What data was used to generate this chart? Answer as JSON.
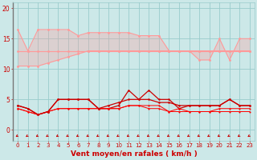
{
  "x": [
    0,
    1,
    2,
    3,
    4,
    5,
    6,
    7,
    8,
    9,
    10,
    11,
    12,
    13,
    14,
    15,
    16,
    17,
    18,
    19,
    20,
    21,
    22,
    23
  ],
  "series_upper": [
    16.5,
    13,
    16.5,
    16.5,
    16.5,
    16.5,
    15.5,
    16,
    16,
    16,
    16,
    16,
    15.5,
    15.5,
    15.5,
    13,
    13,
    13,
    11.5,
    11.5,
    15,
    11.5,
    15,
    15
  ],
  "series_mid1": [
    13,
    13,
    13,
    13,
    13,
    13,
    13,
    13,
    13,
    13,
    13,
    13,
    13,
    13,
    13,
    13,
    13,
    13,
    13,
    13,
    13,
    13,
    13,
    13
  ],
  "series_mid2": [
    10.5,
    10.5,
    10.5,
    11,
    11.5,
    12,
    12.5,
    13,
    13,
    13,
    13,
    13,
    13,
    13,
    13,
    13,
    13,
    13,
    13,
    13,
    13,
    13,
    13,
    13
  ],
  "series_red1": [
    4,
    3.5,
    2.5,
    3,
    5,
    5,
    5,
    5,
    3.5,
    3.5,
    4,
    6.5,
    5,
    6.5,
    5,
    5,
    3.5,
    4,
    4,
    4,
    4,
    5,
    4,
    4
  ],
  "series_red2": [
    3.5,
    3,
    2.5,
    3,
    3.5,
    3.5,
    3.5,
    3.5,
    3.5,
    3.5,
    3.5,
    4,
    4,
    3.5,
    3.5,
    3,
    3.5,
    3,
    3,
    3,
    3.5,
    3.5,
    3.5,
    3.5
  ],
  "series_red3": [
    3.5,
    3,
    2.5,
    3,
    3.5,
    3.5,
    3.5,
    3.5,
    3.5,
    3.5,
    3.5,
    4,
    4,
    4,
    4,
    3,
    3,
    3,
    3,
    3,
    3,
    3,
    3,
    3
  ],
  "series_red4": [
    4,
    3.5,
    2.5,
    3,
    5,
    5,
    5,
    5,
    3.5,
    4,
    4.5,
    5,
    5,
    5,
    4.5,
    4.5,
    4,
    4,
    4,
    4,
    4,
    5,
    4,
    4
  ],
  "bg_color": "#cce8e8",
  "grid_color": "#99cccc",
  "color_light": "#ff9999",
  "color_dark_red": "#cc0000",
  "color_bright_red": "#ff0000",
  "xlabel": "Vent moyen/en rafales ( km/h )",
  "ylim": [
    -1.8,
    21
  ],
  "xlim": [
    -0.5,
    23.5
  ],
  "yticks": [
    0,
    5,
    10,
    15,
    20
  ],
  "label_fontsize": 6.5
}
